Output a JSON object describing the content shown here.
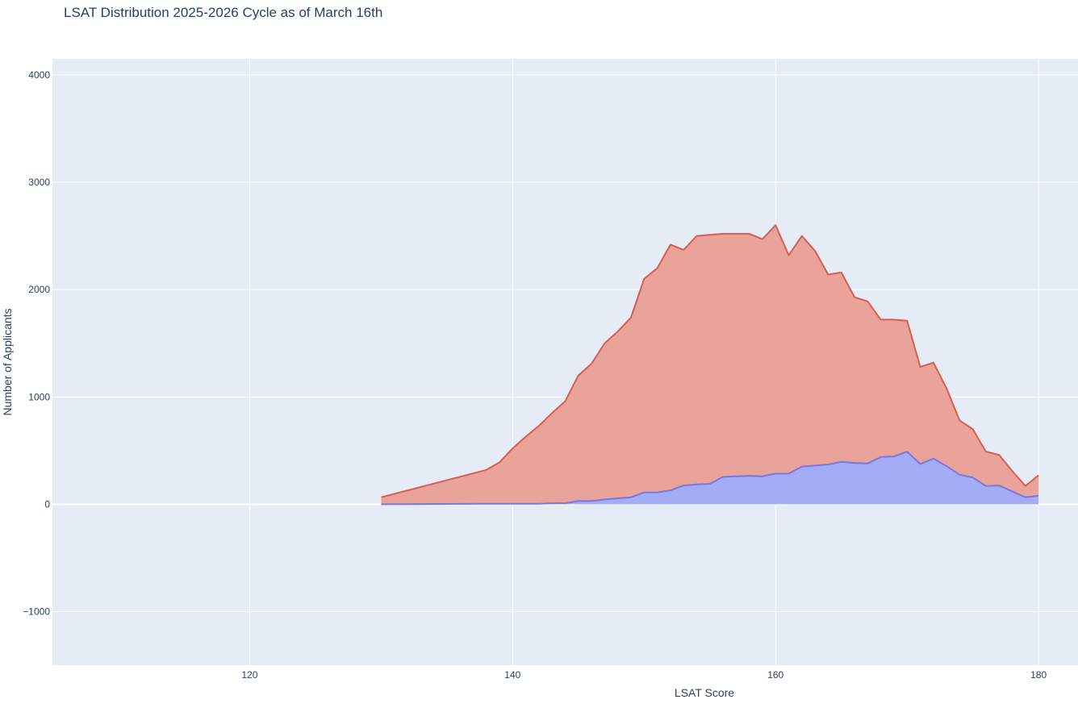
{
  "chart_data": {
    "type": "area",
    "title": "LSAT Distribution 2025-2026 Cycle as of March 16th",
    "xlabel": "LSAT Score",
    "ylabel": "Number of Applicants",
    "xlim": [
      105,
      183
    ],
    "ylim": [
      -1500,
      4150
    ],
    "xticks": [
      120,
      140,
      160,
      180
    ],
    "yticks": [
      -1000,
      0,
      1000,
      2000,
      3000,
      4000
    ],
    "ytick_labels": [
      "−1000",
      "0",
      "1000",
      "2000",
      "3000",
      "4000"
    ],
    "grid": true,
    "legend": "none",
    "x": [
      130,
      138,
      139,
      140,
      141,
      142,
      143,
      144,
      145,
      146,
      147,
      148,
      149,
      150,
      151,
      152,
      153,
      154,
      155,
      156,
      157,
      158,
      159,
      160,
      161,
      162,
      163,
      164,
      165,
      166,
      167,
      168,
      169,
      170,
      171,
      172,
      173,
      174,
      175,
      176,
      177,
      178,
      179,
      180
    ],
    "series": [
      {
        "color": "#d65f52",
        "fill": "#e9a39a",
        "values": [
          65,
          320,
          390,
          520,
          630,
          730,
          850,
          960,
          1200,
          1310,
          1500,
          1610,
          1740,
          2100,
          2200,
          2420,
          2370,
          2500,
          2510,
          2520,
          2520,
          2520,
          2470,
          2600,
          2320,
          2500,
          2360,
          2140,
          2160,
          1930,
          1890,
          1720,
          1720,
          1710,
          1280,
          1320,
          1080,
          780,
          700,
          490,
          460,
          310,
          170,
          270
        ]
      },
      {
        "color": "#7878e0",
        "fill": "#a4acf6",
        "values": [
          0,
          5,
          5,
          5,
          5,
          5,
          10,
          10,
          30,
          30,
          45,
          55,
          65,
          110,
          110,
          130,
          175,
          185,
          190,
          255,
          260,
          265,
          260,
          285,
          285,
          350,
          360,
          370,
          395,
          385,
          380,
          440,
          445,
          490,
          375,
          425,
          355,
          275,
          250,
          170,
          175,
          120,
          65,
          80
        ]
      }
    ]
  }
}
